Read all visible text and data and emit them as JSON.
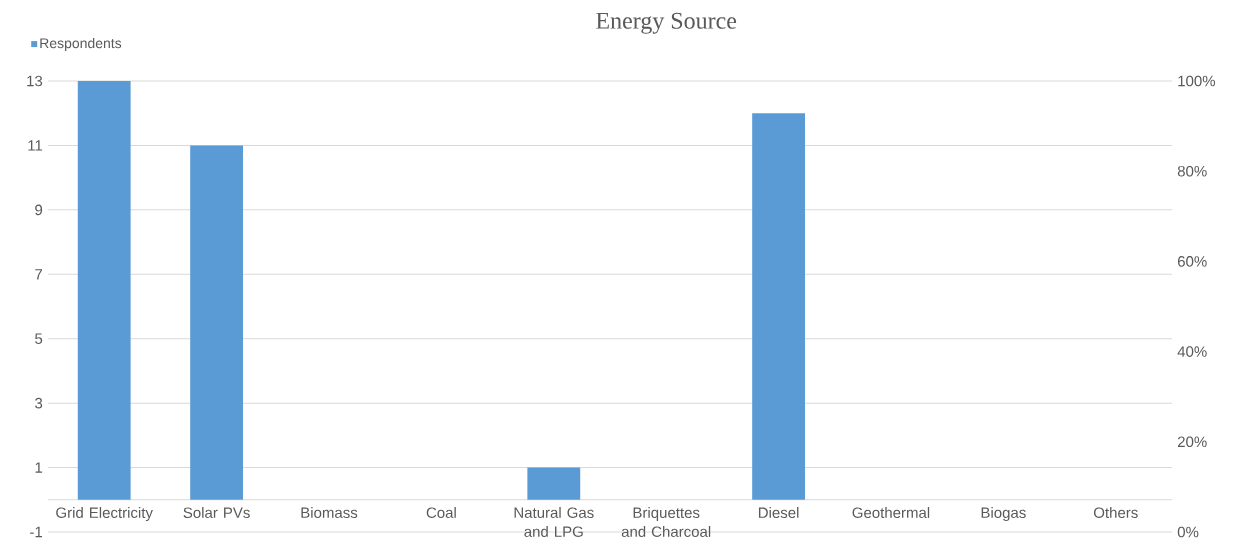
{
  "chart_data": {
    "type": "bar",
    "title": "Energy Source",
    "categories": [
      "Grid Electricity",
      "Solar PVs",
      "Biomass",
      "Coal",
      "Natural Gas and LPG",
      "Briquettes and Charcoal",
      "Diesel",
      "Geothermal",
      "Biogas",
      "Others"
    ],
    "series": [
      {
        "name": "Respondents",
        "color": "#5b9bd5",
        "values": [
          13,
          11,
          0,
          0,
          1,
          0,
          12,
          0,
          0,
          0
        ]
      }
    ],
    "ylim": [
      -1,
      13
    ],
    "yticks": [
      -1,
      1,
      3,
      5,
      7,
      9,
      11,
      13
    ],
    "y2lim": [
      0,
      100
    ],
    "y2ticks": [
      {
        "value": 0,
        "label": "0%"
      },
      {
        "value": 20,
        "label": "20%"
      },
      {
        "value": 40,
        "label": "40%"
      },
      {
        "value": 60,
        "label": "60%"
      },
      {
        "value": 80,
        "label": "80%"
      },
      {
        "value": 100,
        "label": "100%"
      }
    ],
    "grid": "y",
    "legend": "top left"
  }
}
